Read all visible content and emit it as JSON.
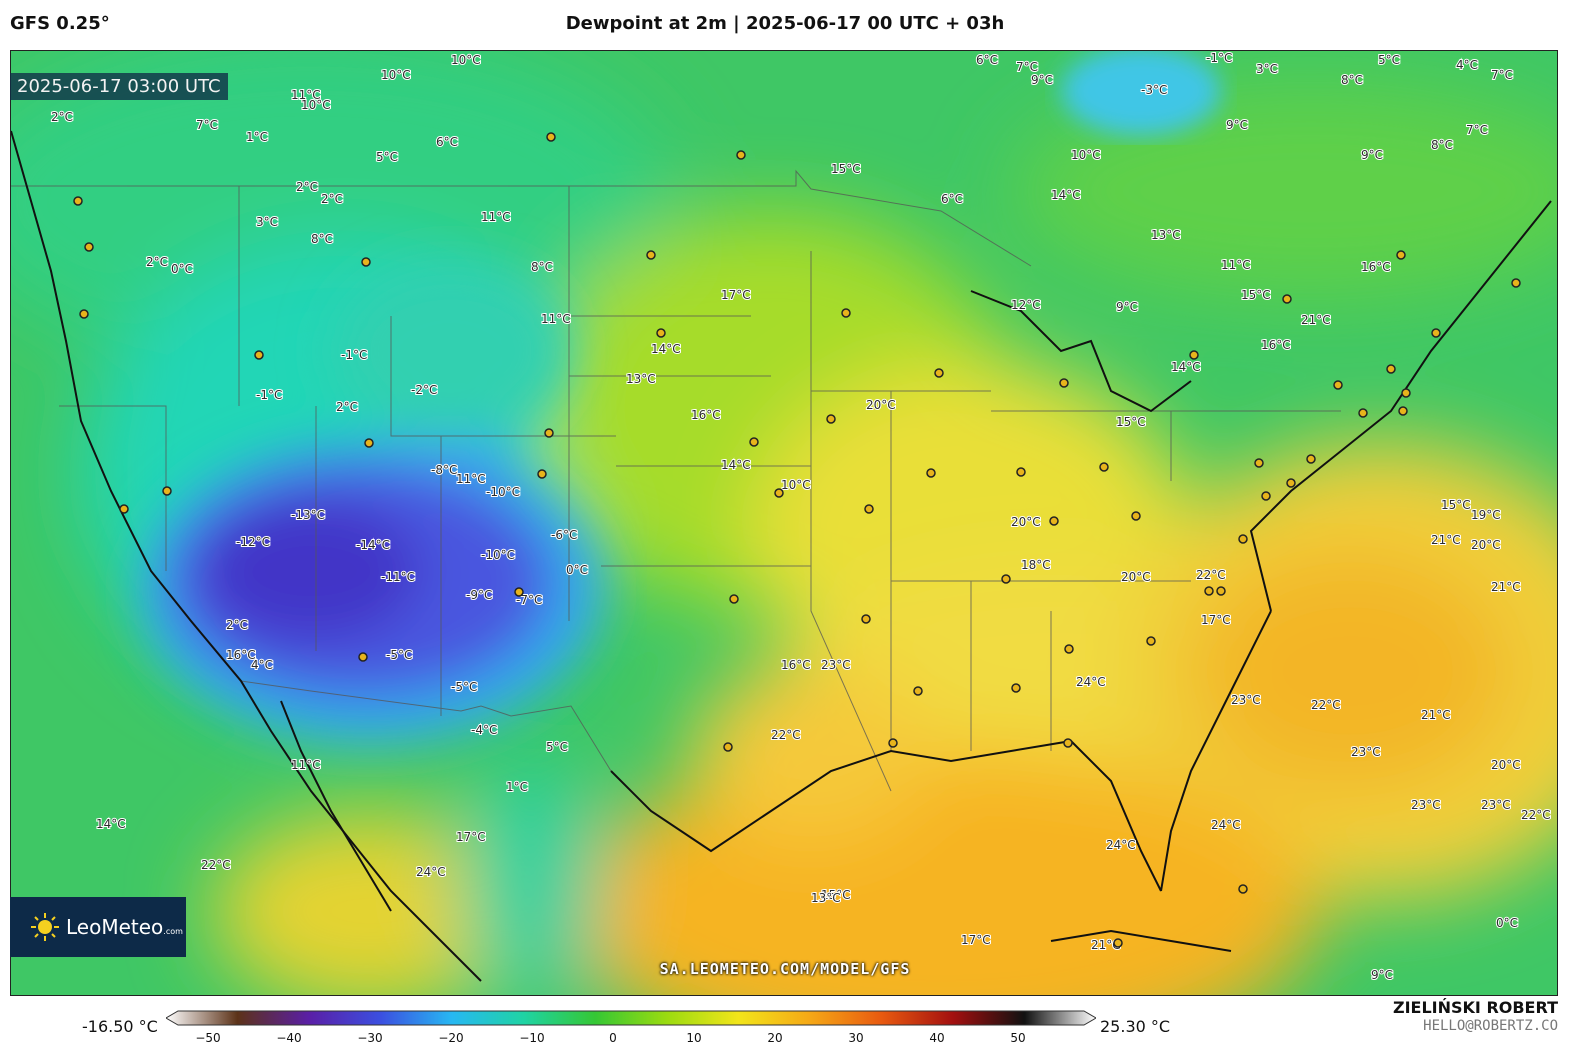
{
  "header": {
    "model": "GFS 0.25°",
    "title": "Dewpoint at 2m | 2025-06-17 00 UTC + 03h"
  },
  "valid_time": "2025-06-17 03:00 UTC",
  "logo": {
    "name": "LeoMeteo",
    "suffix": ".com"
  },
  "site_url": "SA.LEOMETEO.COM/MODEL/GFS",
  "author": {
    "name": "ZIELIŃSKI ROBERT",
    "email": "HELLO@ROBERTZ.CO"
  },
  "colorbar": {
    "min_label": "-16.50 °C",
    "max_label": "25.30 °C",
    "ticks": [
      "−50",
      "−40",
      "−30",
      "−20",
      "−10",
      "0",
      "10",
      "20",
      "30",
      "40",
      "50"
    ],
    "stops": [
      "#ffffff",
      "#5c3218",
      "#5a1fa6",
      "#3b4fe0",
      "#27b8f2",
      "#1fd3a4",
      "#35c734",
      "#9bdb10",
      "#f2e51a",
      "#f5a816",
      "#e85a10",
      "#a31010",
      "#111111",
      "#ffffff"
    ]
  },
  "map_colors": {
    "ocean_pacific": "#2dc95c",
    "ocean_gulf": "#f7b820",
    "ocean_atlantic": "#f2d53a",
    "north": "#43c96a",
    "cool": "#1fd3a4",
    "cold": "#3c6ee8",
    "coldest": "#4a3fd0",
    "plains": "#a8de2a",
    "humid": "#f3e34a",
    "south": "#f6c12b"
  },
  "contour_labels": [
    "10°C",
    "10°C",
    "11°C",
    "10°C",
    "6°C",
    "7°C",
    "9°C",
    "-3°C",
    "-1°C",
    "3°C",
    "8°C",
    "5°C",
    "4°C",
    "7°C",
    "7°C",
    "2°C",
    "1°C",
    "5°C",
    "6°C",
    "15°C",
    "6°C",
    "10°C",
    "9°C",
    "9°C",
    "8°C",
    "7°C",
    "2°C",
    "2°C",
    "14°C",
    "13°C",
    "16°C",
    "12°C",
    "11°C",
    "3°C",
    "2°C",
    "0°C",
    "8°C",
    "11°C",
    "8°C",
    "11°C",
    "17°C",
    "14°C",
    "13°C",
    "16°C",
    "10°C",
    "14°C",
    "15°C",
    "16°C",
    "9°C",
    "-1°C",
    "-1°C",
    "2°C",
    "-2°C",
    "-8°C",
    "-10°C",
    "-13°C",
    "-14°C",
    "-12°C",
    "-11°C",
    "-10°C",
    "-9°C",
    "-7°C",
    "-5°C",
    "-6°C",
    "0°C",
    "-5°C",
    "-4°C",
    "2°C",
    "4°C",
    "16°C",
    "11°C",
    "16°C",
    "20°C",
    "20°C",
    "18°C",
    "15°C",
    "14°C",
    "21°C",
    "17°C",
    "20°C",
    "22°C",
    "23°C",
    "22°C",
    "24°C",
    "23°C",
    "22°C",
    "21°C",
    "19°C",
    "21°C",
    "21°C",
    "15°C",
    "20°C",
    "20°C",
    "23°C",
    "22°C",
    "24°C",
    "24°C",
    "23°C",
    "23°C",
    "21°C",
    "15°C",
    "17°C",
    "19°C",
    "9°C",
    "0°C",
    "14°C",
    "22°C",
    "24°C",
    "5°C",
    "1°C",
    "17°C",
    "11°C",
    "13°C"
  ]
}
